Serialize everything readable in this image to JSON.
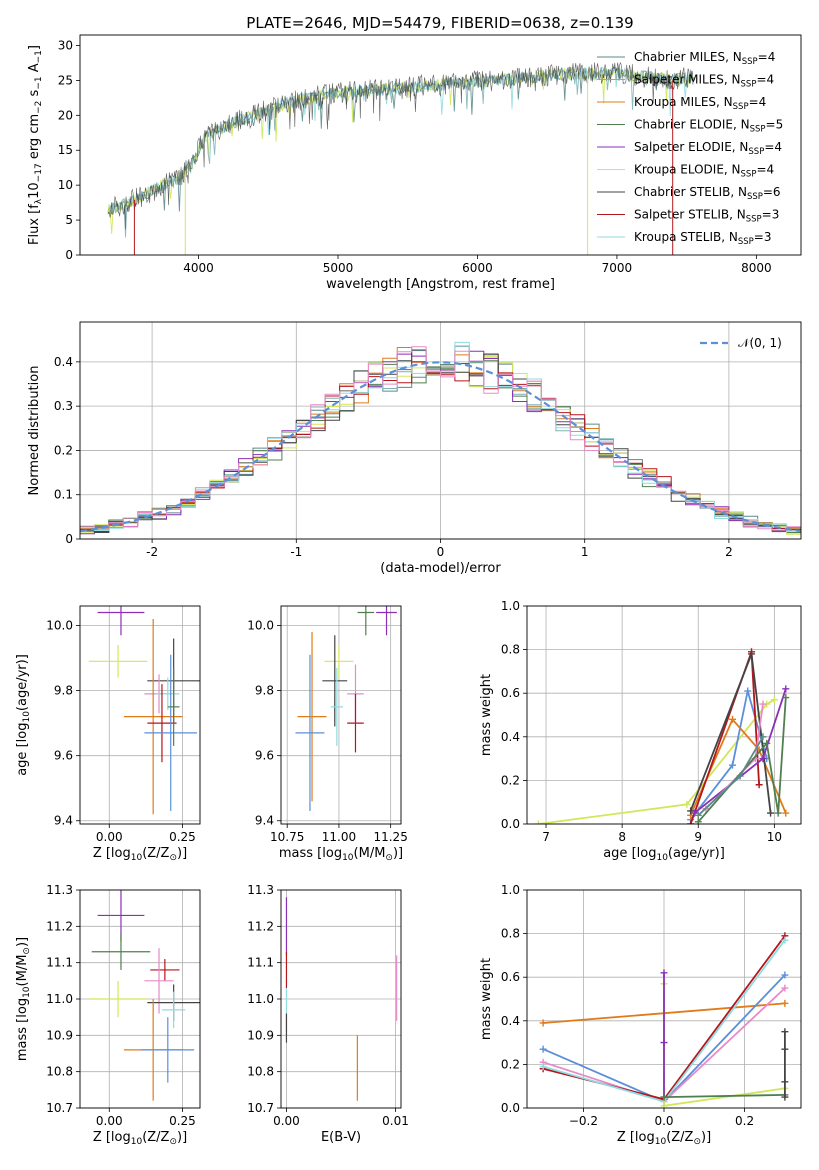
{
  "title": "PLATE=2646, MJD=54479, FIBERID=0638, z=0.139",
  "colors": {
    "chabrier_miles": "#5b8a88",
    "salpeter_miles": "#7fb2b7",
    "kroupa_miles": "#e07b1a",
    "chabrier_elodie": "#4f7f4f",
    "salpeter_elodie": "#8b2fb8",
    "kroupa_elodie": "#d2e65a",
    "chabrier_stelib": "#444444",
    "salpeter_stelib": "#b5161c",
    "kroupa_stelib": "#8fdbe0",
    "gauss": "#5b8fd9",
    "pink": "#e88ac8",
    "blue": "#5b8fd9"
  },
  "chart_data": [
    {
      "id": "spectrum",
      "type": "line",
      "title": "PLATE=2646, MJD=54479, FIBERID=0638, z=0.139",
      "xlabel": "wavelength [Angstrom, rest frame]",
      "ylabel_parts": [
        "Flux [f",
        "λ",
        "10",
        "−17",
        " erg cm",
        "−2",
        " s",
        "−1",
        " A",
        "−1",
        "]"
      ],
      "xlim": [
        3150,
        8320
      ],
      "ylim": [
        0,
        31.5
      ],
      "xticks": [
        4000,
        5000,
        6000,
        7000,
        8000
      ],
      "yticks": [
        0,
        5,
        10,
        15,
        20,
        25,
        30
      ],
      "grid": false,
      "legend_position": "top-right",
      "legend": [
        {
          "label": "Chabrier MILES, N",
          "sub": "SSP",
          "suffix": "=4",
          "color": "chabrier_miles"
        },
        {
          "label": "Salpeter MILES, N",
          "sub": "SSP",
          "suffix": "=4",
          "color": "salpeter_miles"
        },
        {
          "label": "Kroupa MILES, N",
          "sub": "SSP",
          "suffix": "=4",
          "color": "kroupa_miles"
        },
        {
          "label": "Chabrier ELODIE, N",
          "sub": "SSP",
          "suffix": "=5",
          "color": "chabrier_elodie"
        },
        {
          "label": "Salpeter ELODIE, N",
          "sub": "SSP",
          "suffix": "=4",
          "color": "salpeter_elodie"
        },
        {
          "label": "Kroupa ELODIE, N",
          "sub": "SSP",
          "suffix": "=4",
          "color": "kroupa_elodie"
        },
        {
          "label": "Chabrier STELIB, N",
          "sub": "SSP",
          "suffix": "=6",
          "color": "chabrier_stelib"
        },
        {
          "label": "Salpeter STELIB, N",
          "sub": "SSP",
          "suffix": "=3",
          "color": "salpeter_stelib"
        },
        {
          "label": "Kroupa STELIB, N",
          "sub": "SSP",
          "suffix": "=3",
          "color": "kroupa_stelib"
        }
      ],
      "continuum": [
        [
          3350,
          6.5
        ],
        [
          3500,
          7.5
        ],
        [
          3700,
          9.5
        ],
        [
          3850,
          11
        ],
        [
          3950,
          13
        ],
        [
          4050,
          17
        ],
        [
          4200,
          18.5
        ],
        [
          4400,
          20
        ],
        [
          4600,
          21.5
        ],
        [
          4900,
          23
        ],
        [
          5200,
          23.5
        ],
        [
          5500,
          24
        ],
        [
          5800,
          24.5
        ],
        [
          6100,
          25
        ],
        [
          6400,
          25.5
        ],
        [
          6700,
          26
        ],
        [
          7000,
          26
        ],
        [
          7200,
          25.5
        ],
        [
          7400,
          25
        ],
        [
          7550,
          25.5
        ]
      ],
      "dips": [
        {
          "x": 3540,
          "y": 0,
          "color": "salpeter_stelib"
        },
        {
          "x": 3905,
          "y": 0,
          "color": "kroupa_elodie"
        },
        {
          "x": 6790,
          "y": 0,
          "color": "kroupa_elodie"
        },
        {
          "x": 7400,
          "y": 0,
          "color": "salpeter_stelib"
        }
      ]
    },
    {
      "id": "residuals",
      "type": "histogram",
      "xlabel": "(data-model)/error",
      "ylabel": "Normed distribution",
      "xlim": [
        -2.5,
        2.5
      ],
      "ylim": [
        0,
        0.49
      ],
      "xticks": [
        -2,
        -1,
        0,
        1,
        2
      ],
      "yticks": [
        0.0,
        0.1,
        0.2,
        0.3,
        0.4
      ],
      "grid": true,
      "legend_position": "top-right",
      "legend": [
        {
          "label": "𝒩(0, 1)",
          "color": "gauss",
          "style": "dashed"
        }
      ],
      "bin_width": 0.1,
      "series_colors": [
        "chabrier_miles",
        "salpeter_miles",
        "kroupa_miles",
        "chabrier_elodie",
        "salpeter_elodie",
        "kroupa_elodie",
        "chabrier_stelib",
        "salpeter_stelib",
        "kroupa_stelib",
        "pink"
      ]
    },
    {
      "id": "age_vs_Z",
      "type": "errorbar",
      "xlabel_parts": [
        "Z [log",
        "10",
        "(Z/Z",
        "⊙",
        ")]"
      ],
      "ylabel_parts": [
        "age  [log",
        "10",
        "(age/yr)]"
      ],
      "xlim": [
        -0.1,
        0.31
      ],
      "ylim": [
        9.39,
        10.06
      ],
      "xticks": [
        0.0,
        0.25
      ],
      "xtick_labels": [
        "0.00",
        "0.25"
      ],
      "yticks": [
        9.4,
        9.6,
        9.8,
        10.0
      ],
      "ytick_labels": [
        "9.4",
        "9.6",
        "9.8",
        "10.0"
      ],
      "grid": true,
      "points": [
        {
          "x": 0.04,
          "y": 10.04,
          "xerr": 0.08,
          "yerr": 0.07,
          "color": "salpeter_elodie"
        },
        {
          "x": 0.03,
          "y": 9.89,
          "xerr": 0.1,
          "yerr": 0.05,
          "color": "kroupa_elodie"
        },
        {
          "x": 0.22,
          "y": 9.83,
          "xerr": 0.09,
          "yerr": 0.13,
          "color": "chabrier_stelib"
        },
        {
          "x": 0.17,
          "y": 9.79,
          "xerr": 0.05,
          "yerr": 0.06,
          "color": "pink"
        },
        {
          "x": 0.2,
          "y": 9.79,
          "xerr": 0.04,
          "yerr": 0.05,
          "color": "kroupa_stelib"
        },
        {
          "x": 0.15,
          "y": 9.72,
          "xerr": 0.1,
          "yerr": 0.3,
          "color": "kroupa_miles"
        },
        {
          "x": 0.18,
          "y": 9.7,
          "xerr": 0.05,
          "yerr": 0.12,
          "color": "salpeter_stelib"
        },
        {
          "x": 0.21,
          "y": 9.67,
          "xerr": 0.09,
          "yerr": 0.24,
          "color": "blue"
        },
        {
          "x": 0.22,
          "y": 9.75,
          "xerr": 0.02,
          "yerr": 0.12,
          "color": "chabrier_elodie"
        }
      ]
    },
    {
      "id": "age_vs_mass",
      "type": "errorbar",
      "xlabel_parts": [
        "mass [log",
        "10",
        "(M/M",
        "⊙",
        ")]"
      ],
      "ylabel_parts": [],
      "xlim": [
        10.72,
        11.3
      ],
      "ylim": [
        9.39,
        10.06
      ],
      "xticks": [
        10.75,
        11.0,
        11.25
      ],
      "xtick_labels": [
        "10.75",
        "11.00",
        "11.25"
      ],
      "yticks": [
        9.4,
        9.6,
        9.8,
        10.0
      ],
      "ytick_labels": [
        "9.4",
        "9.6",
        "9.8",
        "10.0"
      ],
      "grid": true,
      "points": [
        {
          "x": 11.23,
          "y": 10.04,
          "xerr": 0.05,
          "yerr": 0.07,
          "color": "salpeter_elodie"
        },
        {
          "x": 11.13,
          "y": 10.04,
          "xerr": 0.04,
          "yerr": 0.07,
          "color": "chabrier_elodie"
        },
        {
          "x": 11.0,
          "y": 9.89,
          "xerr": 0.07,
          "yerr": 0.05,
          "color": "kroupa_elodie"
        },
        {
          "x": 10.98,
          "y": 9.83,
          "xerr": 0.06,
          "yerr": 0.14,
          "color": "chabrier_stelib"
        },
        {
          "x": 11.08,
          "y": 9.79,
          "xerr": 0.04,
          "yerr": 0.09,
          "color": "pink"
        },
        {
          "x": 11.08,
          "y": 9.7,
          "xerr": 0.04,
          "yerr": 0.09,
          "color": "salpeter_stelib"
        },
        {
          "x": 10.87,
          "y": 9.72,
          "xerr": 0.07,
          "yerr": 0.26,
          "color": "kroupa_miles"
        },
        {
          "x": 10.86,
          "y": 9.67,
          "xerr": 0.07,
          "yerr": 0.24,
          "color": "blue"
        },
        {
          "x": 10.99,
          "y": 9.75,
          "xerr": 0.03,
          "yerr": 0.12,
          "color": "kroupa_stelib"
        }
      ]
    },
    {
      "id": "weight_vs_age",
      "type": "line",
      "xlabel_parts": [
        "age  [log",
        "10",
        "(age/yr)]"
      ],
      "ylabel": "mass weight",
      "xlim": [
        6.75,
        10.35
      ],
      "ylim": [
        0,
        1.0
      ],
      "xticks": [
        7,
        8,
        9,
        10
      ],
      "xtick_labels": [
        "7",
        "8",
        "9",
        "10"
      ],
      "yticks": [
        0.0,
        0.2,
        0.4,
        0.6,
        0.8,
        1.0
      ],
      "ytick_labels": [
        "0.0",
        "0.2",
        "0.4",
        "0.6",
        "0.8",
        "1.0"
      ],
      "grid": true,
      "series": [
        {
          "color": "kroupa_elodie",
          "points": [
            [
              6.9,
              0.0
            ],
            [
              8.85,
              0.09
            ],
            [
              9.9,
              0.55
            ],
            [
              10.0,
              0.57
            ]
          ]
        },
        {
          "color": "blue",
          "points": [
            [
              8.9,
              0.02
            ],
            [
              9.45,
              0.27
            ],
            [
              9.65,
              0.61
            ],
            [
              9.9,
              0.3
            ]
          ]
        },
        {
          "color": "kroupa_miles",
          "points": [
            [
              8.9,
              0.04
            ],
            [
              9.45,
              0.48
            ],
            [
              9.8,
              0.34
            ],
            [
              10.15,
              0.05
            ]
          ]
        },
        {
          "color": "salpeter_stelib",
          "points": [
            [
              8.9,
              0.0
            ],
            [
              9.7,
              0.79
            ],
            [
              9.8,
              0.18
            ]
          ]
        },
        {
          "color": "chabrier_stelib",
          "points": [
            [
              8.9,
              0.06
            ],
            [
              9.7,
              0.78
            ],
            [
              9.95,
              0.05
            ]
          ]
        },
        {
          "color": "salpeter_elodie",
          "points": [
            [
              8.95,
              0.05
            ],
            [
              9.85,
              0.3
            ],
            [
              10.15,
              0.62
            ]
          ]
        },
        {
          "color": "pink",
          "points": [
            [
              9.1,
              0.07
            ],
            [
              9.75,
              0.3
            ],
            [
              9.85,
              0.55
            ]
          ]
        },
        {
          "color": "chabrier_elodie",
          "points": [
            [
              9.0,
              0.01
            ],
            [
              9.9,
              0.37
            ],
            [
              10.05,
              0.05
            ],
            [
              10.15,
              0.58
            ]
          ]
        },
        {
          "color": "chabrier_miles",
          "points": [
            [
              9.0,
              0.04
            ],
            [
              9.55,
              0.22
            ],
            [
              9.85,
              0.4
            ]
          ]
        }
      ]
    },
    {
      "id": "mass_vs_Z",
      "type": "errorbar",
      "xlabel_parts": [
        "Z [log",
        "10",
        "(Z/Z",
        "⊙",
        ")]"
      ],
      "ylabel_parts": [
        "mass [log",
        "10",
        "(M/M",
        "⊙",
        ")]"
      ],
      "xlim": [
        -0.1,
        0.31
      ],
      "ylim": [
        10.7,
        11.3
      ],
      "xticks": [
        0.0,
        0.25
      ],
      "xtick_labels": [
        "0.00",
        "0.25"
      ],
      "yticks": [
        10.7,
        10.8,
        10.9,
        11.0,
        11.1,
        11.2,
        11.3
      ],
      "ytick_labels": [
        "10.7",
        "10.8",
        "10.9",
        "11.0",
        "11.1",
        "11.2",
        "11.3"
      ],
      "grid": true,
      "points": [
        {
          "x": 0.04,
          "y": 11.23,
          "xerr": 0.08,
          "yerr": 0.07,
          "color": "salpeter_elodie"
        },
        {
          "x": 0.04,
          "y": 11.13,
          "xerr": 0.1,
          "yerr": 0.05,
          "color": "chabrier_elodie"
        },
        {
          "x": 0.03,
          "y": 11.0,
          "xerr": 0.1,
          "yerr": 0.05,
          "color": "kroupa_elodie"
        },
        {
          "x": 0.19,
          "y": 11.08,
          "xerr": 0.05,
          "yerr": 0.03,
          "color": "salpeter_stelib"
        },
        {
          "x": 0.17,
          "y": 11.05,
          "xerr": 0.05,
          "yerr": 0.09,
          "color": "pink"
        },
        {
          "x": 0.22,
          "y": 10.99,
          "xerr": 0.09,
          "yerr": 0.05,
          "color": "chabrier_stelib"
        },
        {
          "x": 0.22,
          "y": 10.97,
          "xerr": 0.04,
          "yerr": 0.05,
          "color": "kroupa_stelib"
        },
        {
          "x": 0.15,
          "y": 10.86,
          "xerr": 0.1,
          "yerr": 0.14,
          "color": "kroupa_miles"
        },
        {
          "x": 0.2,
          "y": 10.86,
          "xerr": 0.09,
          "yerr": 0.09,
          "color": "blue"
        }
      ]
    },
    {
      "id": "mass_vs_ebv",
      "type": "errorbar",
      "xlabel": "E(B-V)",
      "xlim": [
        -0.0005,
        0.0105
      ],
      "ylim": [
        10.7,
        11.3
      ],
      "xticks": [
        0.0,
        0.01
      ],
      "xtick_labels": [
        "0.00",
        "0.01"
      ],
      "yticks": [
        10.7,
        10.8,
        10.9,
        11.0,
        11.1,
        11.2,
        11.3
      ],
      "ytick_labels": [
        "10.7",
        "10.8",
        "10.9",
        "11.0",
        "11.1",
        "11.2",
        "11.3"
      ],
      "grid": true,
      "points": [
        {
          "x": 0.0,
          "y": 11.2,
          "xerr": 0,
          "yerr": 0.08,
          "color": "salpeter_elodie"
        },
        {
          "x": 0.0,
          "y": 11.08,
          "xerr": 0,
          "yerr": 0.05,
          "color": "salpeter_stelib"
        },
        {
          "x": 0.0,
          "y": 10.97,
          "xerr": 0,
          "yerr": 0.06,
          "color": "kroupa_stelib"
        },
        {
          "x": 0.0,
          "y": 10.92,
          "xerr": 0,
          "yerr": 0.04,
          "color": "chabrier_stelib"
        },
        {
          "x": 0.0065,
          "y": 10.81,
          "xerr": 0,
          "yerr": 0.09,
          "color": "kroupa_miles"
        },
        {
          "x": 0.0101,
          "y": 11.03,
          "xerr": 0,
          "yerr": 0.09,
          "color": "pink"
        }
      ]
    },
    {
      "id": "weight_vs_Z",
      "type": "line",
      "xlabel_parts": [
        "Z [log",
        "10",
        "(Z/Z",
        "⊙",
        ")]"
      ],
      "ylabel": "mass weight",
      "xlim": [
        -0.34,
        0.34
      ],
      "ylim": [
        0,
        1.0
      ],
      "xticks": [
        -0.2,
        0.0,
        0.2
      ],
      "xtick_labels": [
        "−0.2",
        "0.0",
        "0.2"
      ],
      "yticks": [
        0.0,
        0.2,
        0.4,
        0.6,
        0.8,
        1.0
      ],
      "ytick_labels": [
        "0.0",
        "0.2",
        "0.4",
        "0.6",
        "0.8",
        "1.0"
      ],
      "grid": true,
      "series": [
        {
          "color": "kroupa_miles",
          "points": [
            [
              -0.3,
              0.39
            ],
            [
              0.3,
              0.48
            ]
          ]
        },
        {
          "color": "blue",
          "points": [
            [
              -0.3,
              0.27
            ],
            [
              0.0,
              0.03
            ],
            [
              0.3,
              0.61
            ]
          ]
        },
        {
          "color": "pink",
          "points": [
            [
              -0.3,
              0.21
            ],
            [
              0.0,
              0.03
            ],
            [
              0.3,
              0.55
            ]
          ]
        },
        {
          "color": "salpeter_stelib",
          "points": [
            [
              -0.3,
              0.18
            ],
            [
              0.0,
              0.04
            ],
            [
              0.3,
              0.79
            ]
          ]
        },
        {
          "color": "kroupa_stelib",
          "points": [
            [
              -0.3,
              0.19
            ],
            [
              0.0,
              0.03
            ],
            [
              0.3,
              0.77
            ]
          ]
        },
        {
          "color": "kroupa_elodie",
          "points": [
            [
              0.0,
              0.57
            ],
            [
              0.0,
              0.01
            ],
            [
              0.3,
              0.09
            ]
          ]
        },
        {
          "color": "salpeter_elodie",
          "points": [
            [
              0.0,
              0.62
            ],
            [
              0.0,
              0.3
            ],
            [
              0.0,
              0.05
            ]
          ]
        },
        {
          "color": "chabrier_elodie",
          "points": [
            [
              0.0,
              0.05
            ],
            [
              0.3,
              0.06
            ]
          ]
        },
        {
          "color": "chabrier_stelib",
          "points": [
            [
              0.3,
              0.35
            ],
            [
              0.3,
              0.27
            ],
            [
              0.3,
              0.12
            ],
            [
              0.3,
              0.05
            ]
          ]
        }
      ]
    }
  ]
}
